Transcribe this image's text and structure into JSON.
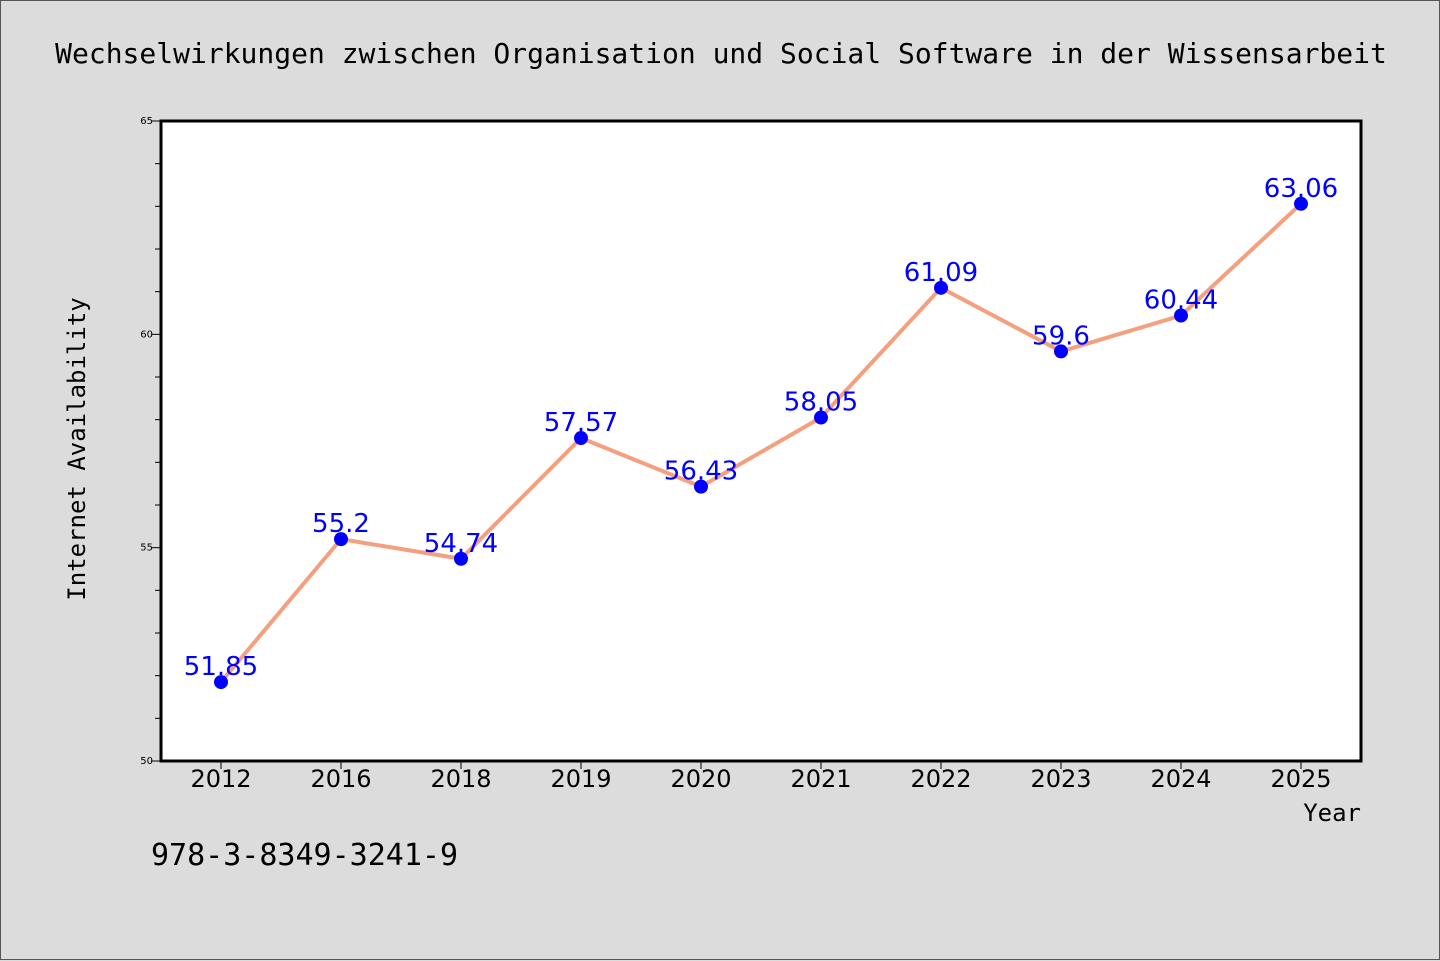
{
  "chart_data": {
    "type": "line",
    "title": "Wechselwirkungen zwischen Organisation und Social Software in der Wissensarbeit",
    "xlabel": "Year",
    "ylabel": "Internet Availability",
    "categories": [
      "2012",
      "2016",
      "2018",
      "2019",
      "2020",
      "2021",
      "2022",
      "2023",
      "2024",
      "2025"
    ],
    "series": [
      {
        "values": [
          51.85,
          55.2,
          54.74,
          57.57,
          56.43,
          58.05,
          61.09,
          59.6,
          60.44,
          63.06
        ],
        "labels": [
          "51.85",
          "55.2",
          "54.74",
          "57.57",
          "56.43",
          "58.05",
          "61.09",
          "59.6",
          "60.44",
          "63.06"
        ]
      }
    ],
    "ylim": [
      50,
      65
    ],
    "yticks": [
      "50",
      "55",
      "60",
      "65"
    ],
    "grid": false,
    "line_color": "#f4a07f",
    "marker_color": "#0000ff",
    "label_color": "#0000ff"
  },
  "footnote": "978-3-8349-3241-9"
}
